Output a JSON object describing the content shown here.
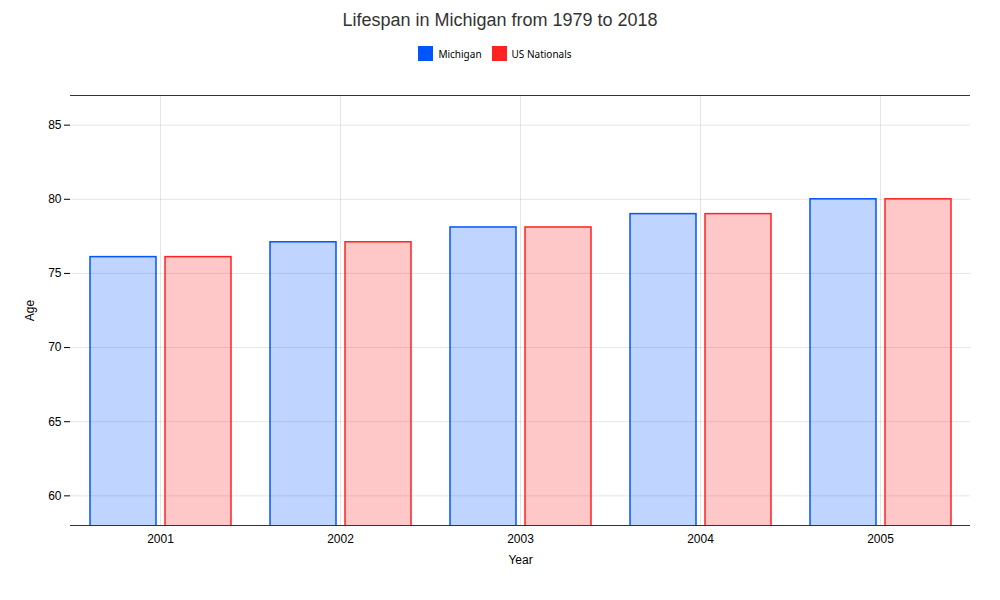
{
  "chart_data": {
    "type": "bar",
    "title": "Lifespan in Michigan from 1979 to 2018",
    "xlabel": "Year",
    "ylabel": "Age",
    "categories": [
      "2001",
      "2002",
      "2003",
      "2004",
      "2005"
    ],
    "series": [
      {
        "name": "Michigan",
        "color": "#0055ff",
        "values": [
          76.1,
          77.1,
          78.1,
          79.0,
          80.0
        ]
      },
      {
        "name": "US Nationals",
        "color": "#ff2222",
        "values": [
          76.1,
          77.1,
          78.1,
          79.0,
          80.0
        ]
      }
    ],
    "ylim": [
      58,
      87
    ],
    "yticks": [
      60,
      65,
      70,
      75,
      80,
      85
    ],
    "grid": true,
    "legend": "top"
  }
}
